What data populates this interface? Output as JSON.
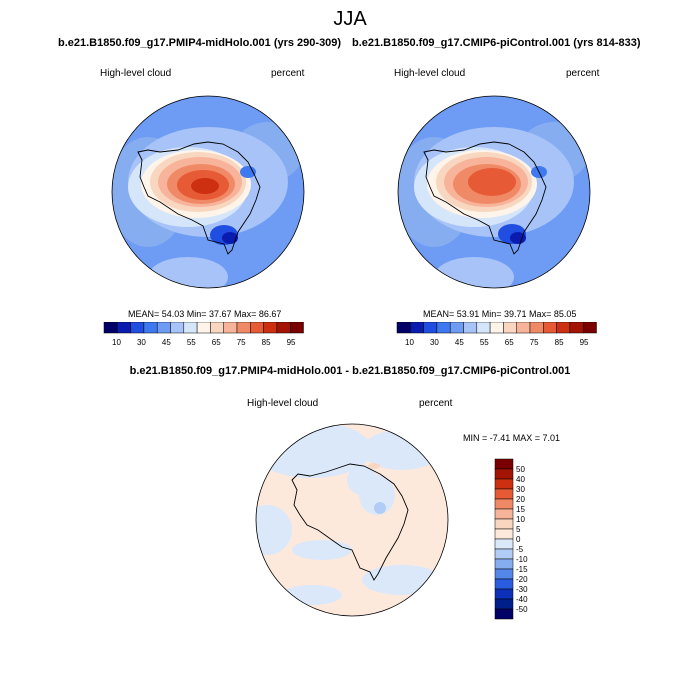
{
  "title": "JJA",
  "panels": [
    {
      "run_title": "b.e21.B1850.f09_g17.PMIP4-midHolo.001 (yrs 290-309)",
      "variable": "High-level cloud",
      "units": "percent",
      "stats": "MEAN=  54.03  Min=  37.67  Max=  86.67"
    },
    {
      "run_title": "b.e21.B1850.f09_g17.CMIP6-piControl.001 (yrs 814-833)",
      "variable": "High-level cloud",
      "units": "percent",
      "stats": "MEAN=  53.91  Min=  39.71  Max=  85.05"
    }
  ],
  "colorbar_top": {
    "labels": [
      "10",
      "30",
      "45",
      "55",
      "65",
      "75",
      "85",
      "95"
    ],
    "colors": [
      "#000066",
      "#0a1cb0",
      "#1f4ee0",
      "#3f79f0",
      "#6e9cf5",
      "#a7c3f7",
      "#d6e6fa",
      "#fff4ea",
      "#f9d6bf",
      "#f7b49a",
      "#f08a66",
      "#e65a36",
      "#cc3011",
      "#a31405",
      "#7a0000"
    ]
  },
  "difference": {
    "title": "b.e21.B1850.f09_g17.PMIP4-midHolo.001 - b.e21.B1850.f09_g17.CMIP6-piControl.001",
    "variable": "High-level cloud",
    "units": "percent",
    "stats": "MIN =  -7.41 MAX =    7.01",
    "colorbar_labels": [
      "50",
      "40",
      "30",
      "20",
      "15",
      "10",
      "5",
      "0",
      "-5",
      "-10",
      "-15",
      "-20",
      "-30",
      "-40",
      "-50"
    ],
    "colorbar_colors": [
      "#7a0000",
      "#a31405",
      "#cc3011",
      "#e65a36",
      "#f08a66",
      "#f7b49a",
      "#f9d6bf",
      "#fde9dc",
      "#dbe8fa",
      "#b2cdf5",
      "#86adf0",
      "#5587ea",
      "#2a5ce0",
      "#0e30b8",
      "#001f8a",
      "#000066"
    ]
  }
}
